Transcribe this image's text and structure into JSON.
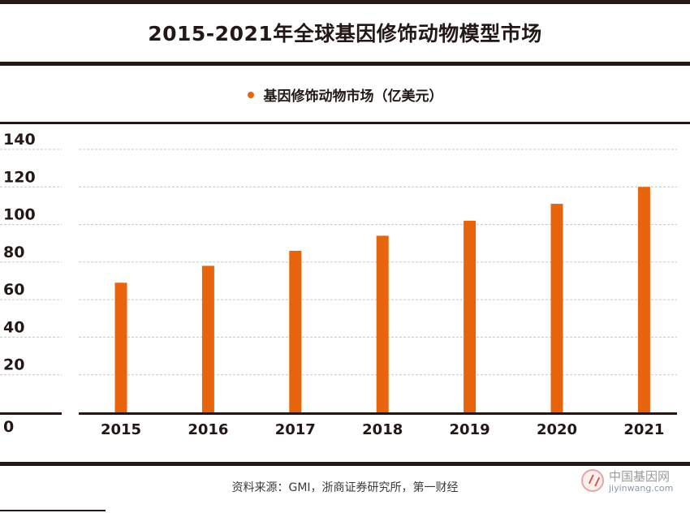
{
  "title": "2015-2021年全球基因修饰动物模型市场",
  "legend_label": "基因修饰动物市场（亿美元）",
  "source": "资料来源：GMI，浙商证券研究所，第一财经",
  "watermark": {
    "cn": "中国基因网",
    "en": "jiyinwang.com"
  },
  "colors": {
    "bar": "#E8640C",
    "text": "#231815",
    "rule": "#231815",
    "grid": "#c7c7c7"
  },
  "chart_data": {
    "type": "bar",
    "title": "2015-2021年全球基因修饰动物模型市场",
    "categories": [
      "2015",
      "2016",
      "2017",
      "2018",
      "2019",
      "2020",
      "2021"
    ],
    "series": [
      {
        "name": "基因修饰动物市场（亿美元）",
        "values": [
          69,
          78,
          86,
          94,
          102,
          111,
          120
        ]
      }
    ],
    "yticks": [
      "0",
      "20",
      "40",
      "60",
      "80",
      "100",
      "120",
      "140"
    ],
    "ylim": [
      0,
      140
    ],
    "xlabel": "",
    "ylabel": "",
    "grid": true,
    "legend": "top-center"
  }
}
